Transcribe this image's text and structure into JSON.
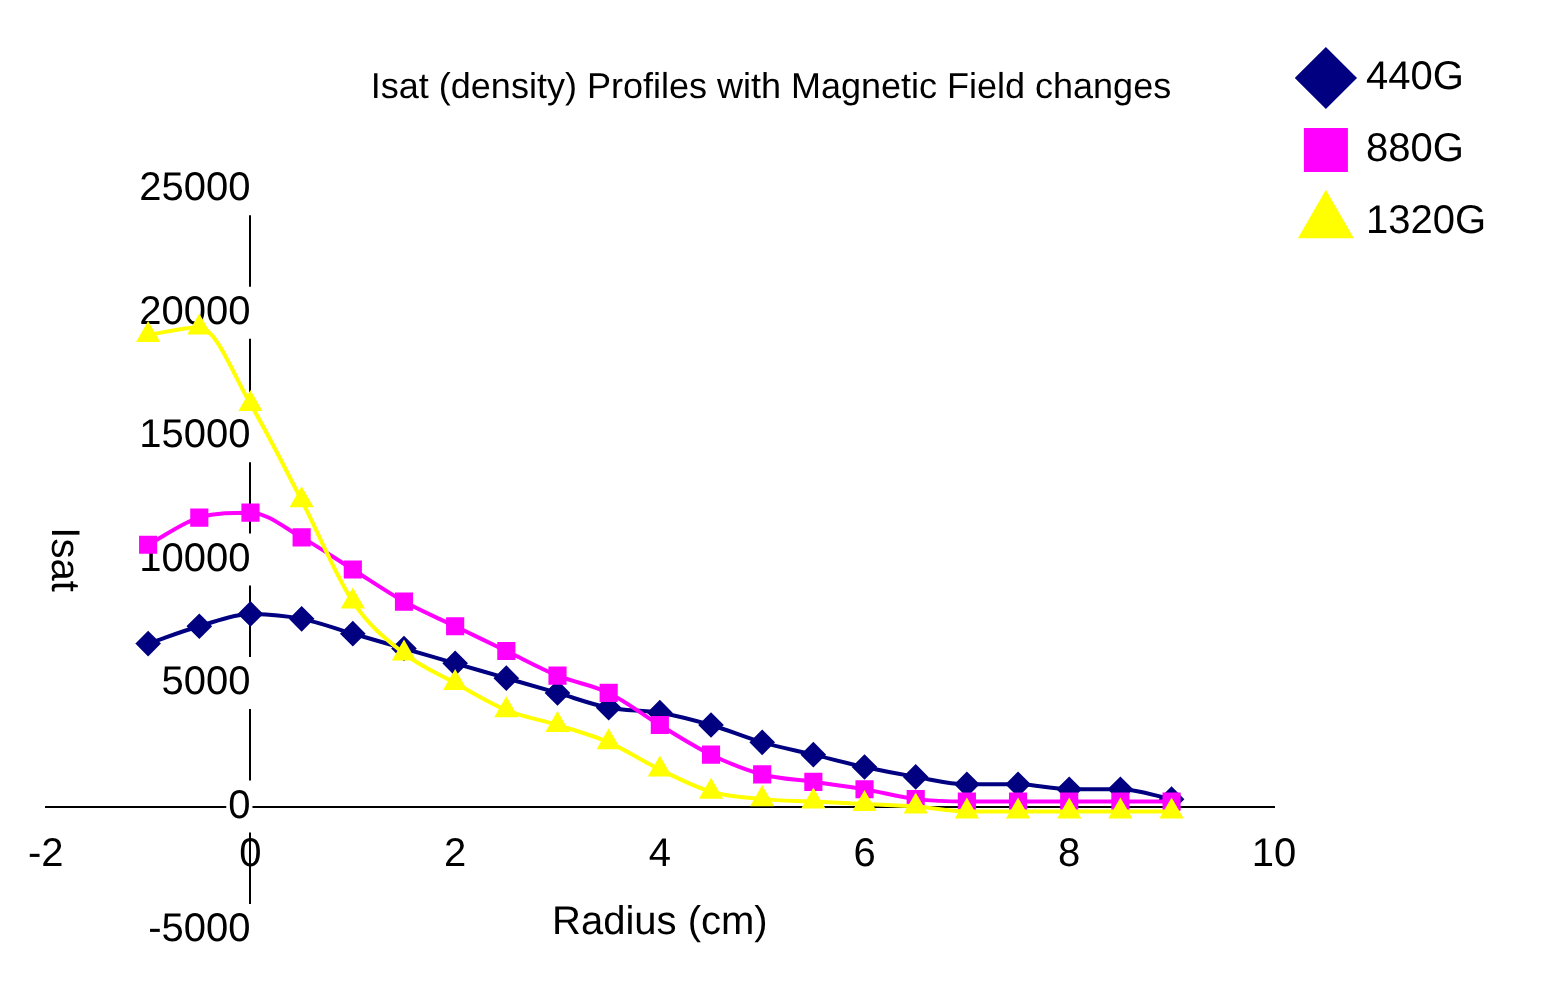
{
  "chart_data": {
    "type": "line",
    "title": "Isat (density) Profiles with Magnetic Field changes",
    "xlabel": "Radius (cm)",
    "ylabel": "Isat",
    "x": [
      -1,
      -0.5,
      0,
      0.5,
      1,
      1.5,
      2,
      2.5,
      3,
      3.5,
      4,
      4.5,
      5,
      5.5,
      6,
      6.5,
      7,
      7.5,
      8,
      8.5,
      9
    ],
    "series": [
      {
        "name": "440G",
        "color": "#000080",
        "marker": "diamond",
        "values": [
          6600,
          7300,
          7800,
          7600,
          7000,
          6400,
          5800,
          5200,
          4600,
          4000,
          3800,
          3300,
          2600,
          2100,
          1600,
          1200,
          900,
          900,
          700,
          700,
          300
        ]
      },
      {
        "name": "880G",
        "color": "#ff00ff",
        "marker": "square",
        "values": [
          10600,
          11700,
          11900,
          10900,
          9600,
          8300,
          7300,
          6300,
          5300,
          4600,
          3300,
          2100,
          1300,
          1000,
          700,
          300,
          200,
          200,
          200,
          200,
          200
        ]
      },
      {
        "name": "1320G",
        "color": "#ffff00",
        "marker": "triangle",
        "values": [
          19100,
          19400,
          16300,
          12400,
          8300,
          6200,
          5000,
          3900,
          3300,
          2600,
          1500,
          600,
          300,
          200,
          100,
          0,
          -200,
          -200,
          -200,
          -200,
          -200
        ]
      }
    ],
    "xlim": [
      -2,
      10
    ],
    "xticks": [
      -2,
      0,
      2,
      4,
      6,
      8,
      10
    ],
    "ylim": [
      -5000,
      25000
    ],
    "yticks": [
      -5000,
      0,
      5000,
      10000,
      15000,
      20000,
      25000
    ],
    "grid": false,
    "legend": "right",
    "line_style": "solid"
  }
}
